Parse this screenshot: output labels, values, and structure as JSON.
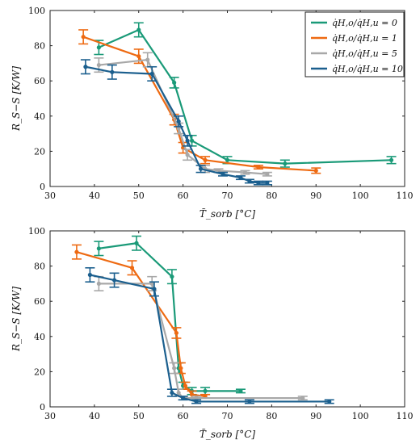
{
  "chart_data": [
    {
      "type": "line",
      "xlabel": "T̃_sorb [°C]",
      "ylabel": "R_S−S [K/W]",
      "xlim": [
        30,
        110
      ],
      "ylim": [
        0,
        100
      ],
      "xticks": [
        "30",
        "40",
        "50",
        "60",
        "70",
        "80",
        "90",
        "100",
        "110"
      ],
      "yticks": [
        "0",
        "20",
        "40",
        "60",
        "80",
        "100"
      ],
      "legend_position": "top-right",
      "series": [
        {
          "name": "q̇H,o/q̇H,u = 0",
          "color": "#1a9a78",
          "points": [
            [
              41,
              79,
              4
            ],
            [
              50,
              89,
              4
            ],
            [
              58,
              59,
              3
            ],
            [
              62,
              26,
              3
            ],
            [
              70,
              15,
              2
            ],
            [
              83,
              13,
              2
            ],
            [
              107,
              15,
              2
            ]
          ]
        },
        {
          "name": "q̇H,o/q̇H,u = 1",
          "color": "#ee6a12",
          "points": [
            [
              37.5,
              85,
              4
            ],
            [
              50,
              74,
              4
            ],
            [
              58,
              38,
              3
            ],
            [
              60,
              22,
              3
            ],
            [
              65,
              15,
              2
            ],
            [
              77,
              11,
              1
            ],
            [
              90,
              9,
              1.5
            ]
          ]
        },
        {
          "name": "q̇H,o/q̇H,u = 5",
          "color": "#a8a8a8",
          "points": [
            [
              41,
              69,
              4
            ],
            [
              52,
              72,
              4
            ],
            [
              59,
              33,
              3
            ],
            [
              61,
              18,
              3
            ],
            [
              65,
              10,
              2
            ],
            [
              68,
              9,
              1
            ],
            [
              74,
              8,
              1
            ],
            [
              79,
              7,
              1
            ]
          ]
        },
        {
          "name": "q̇H,o/q̇H,u = 10",
          "color": "#1b5f8e",
          "points": [
            [
              38,
              68,
              4
            ],
            [
              44,
              65,
              4
            ],
            [
              53,
              64,
              4
            ],
            [
              59,
              37,
              3
            ],
            [
              61,
              26,
              3
            ],
            [
              64,
              10,
              2
            ],
            [
              69,
              7,
              1
            ],
            [
              73,
              5,
              1
            ],
            [
              75,
              3,
              1
            ],
            [
              77,
              2,
              1
            ],
            [
              79,
              2,
              1
            ]
          ]
        }
      ]
    },
    {
      "type": "line",
      "xlabel": "T̃_sorb [°C]",
      "ylabel": "R_S−S [K/W]",
      "xlim": [
        30,
        110
      ],
      "ylim": [
        0,
        100
      ],
      "xticks": [
        "30",
        "40",
        "50",
        "60",
        "70",
        "80",
        "90",
        "100",
        "110"
      ],
      "yticks": [
        "0",
        "20",
        "40",
        "60",
        "80",
        "100"
      ],
      "series": [
        {
          "name": "q̇H,o/q̇H,u = 0",
          "color": "#1a9a78",
          "points": [
            [
              41,
              90,
              4
            ],
            [
              49.5,
              93,
              4
            ],
            [
              57.5,
              74,
              4
            ],
            [
              59,
              22,
              3
            ],
            [
              60,
              12,
              2
            ],
            [
              62,
              9,
              2
            ],
            [
              65,
              9,
              2
            ],
            [
              73,
              9,
              1
            ]
          ]
        },
        {
          "name": "q̇H,o/q̇H,u = 1",
          "color": "#ee6a12",
          "points": [
            [
              36,
              88,
              4
            ],
            [
              48.5,
              79,
              4
            ],
            [
              58.5,
              42,
              3
            ],
            [
              59.5,
              22,
              3
            ],
            [
              60.5,
              12,
              2
            ],
            [
              62,
              7,
              2
            ],
            [
              65,
              6,
              1
            ]
          ]
        },
        {
          "name": "q̇H,o/q̇H,u = 5",
          "color": "#a8a8a8",
          "points": [
            [
              41,
              70,
              4
            ],
            [
              53,
              70,
              4
            ],
            [
              58,
              22,
              3
            ],
            [
              59,
              8,
              2
            ],
            [
              60,
              5,
              1
            ],
            [
              63,
              5,
              1
            ],
            [
              87,
              5,
              1
            ]
          ]
        },
        {
          "name": "q̇H,o/q̇H,u = 10",
          "color": "#1b5f8e",
          "points": [
            [
              39,
              75,
              4
            ],
            [
              44.5,
              72,
              4
            ],
            [
              53.5,
              67,
              4
            ],
            [
              57.5,
              8,
              2
            ],
            [
              60,
              5,
              1
            ],
            [
              63,
              3,
              1
            ],
            [
              75,
              3,
              1
            ],
            [
              93,
              3,
              1
            ]
          ]
        }
      ]
    }
  ]
}
